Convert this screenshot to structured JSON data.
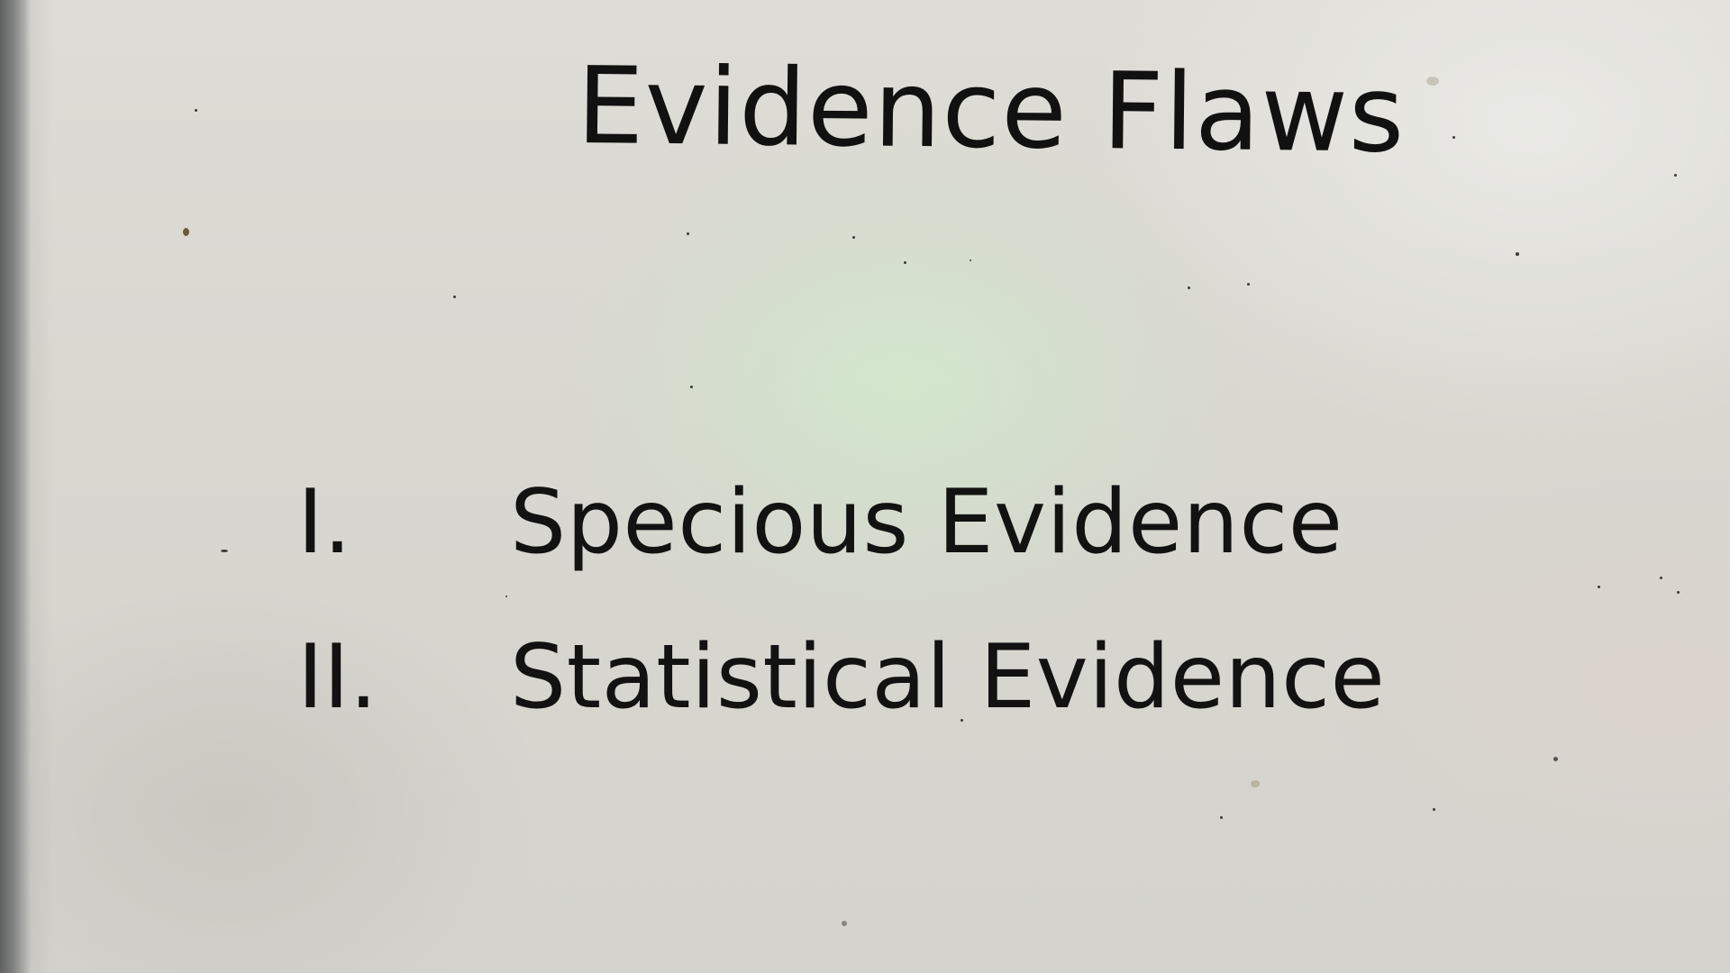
{
  "slide": {
    "title": "Evidence Flaws",
    "items": [
      {
        "numeral": "I.",
        "label": "Specious Evidence"
      },
      {
        "numeral": "II.",
        "label": "Statistical Evidence"
      }
    ]
  },
  "colors": {
    "text": "#121212",
    "screen": "#d9d7d2",
    "bezel": "#6b6d6e"
  }
}
